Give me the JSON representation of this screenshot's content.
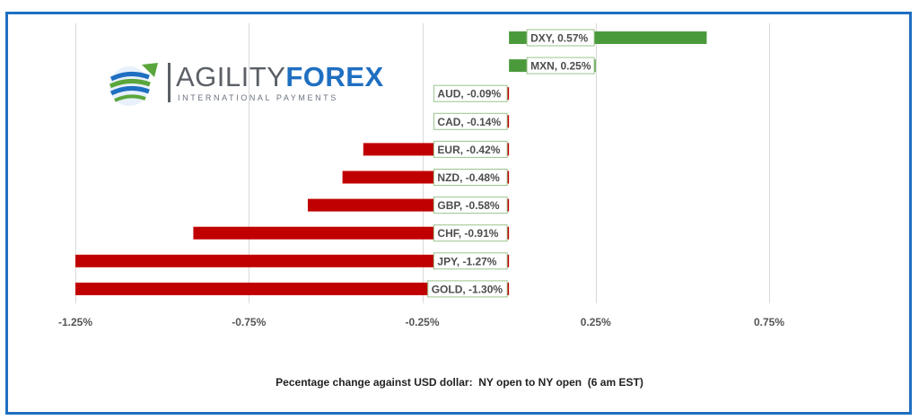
{
  "brand": {
    "name_part1": "AGILITY",
    "name_part2": "FOREX",
    "tagline": "INTERNATIONAL PAYMENTS"
  },
  "caption": "Pecentage change against USD dollar:  NY open to NY open  (6 am EST)",
  "colors": {
    "positive": "#4a9a3c",
    "negative": "#c00000",
    "border": "#1f6fc1",
    "grid": "#d9d9d9"
  },
  "chart_data": {
    "type": "bar",
    "orientation": "horizontal",
    "categories": [
      "DXY",
      "MXN",
      "AUD",
      "CAD",
      "EUR",
      "NZD",
      "GBP",
      "CHF",
      "JPY",
      "GOLD"
    ],
    "values": [
      0.57,
      0.25,
      -0.09,
      -0.14,
      -0.42,
      -0.48,
      -0.58,
      -0.91,
      -1.27,
      -1.3
    ],
    "data_labels": [
      "DXY, 0.57%",
      "MXN, 0.25%",
      "AUD, -0.09%",
      "CAD, -0.14%",
      "EUR, -0.42%",
      "NZD, -0.48%",
      "GBP, -0.58%",
      "CHF, -0.91%",
      "JPY, -1.27%",
      "GOLD, -1.30%"
    ],
    "x_ticks": [
      -1.25,
      -0.75,
      -0.25,
      0.25,
      0.75
    ],
    "x_tick_labels": [
      "-1.25%",
      "-0.75%",
      "-0.25%",
      "0.25%",
      "0.75%"
    ],
    "xlim": [
      -1.25,
      0.75
    ],
    "grid": true,
    "title": "",
    "xlabel": "Pecentage change against USD dollar:  NY open to NY open  (6 am EST)",
    "ylabel": ""
  }
}
